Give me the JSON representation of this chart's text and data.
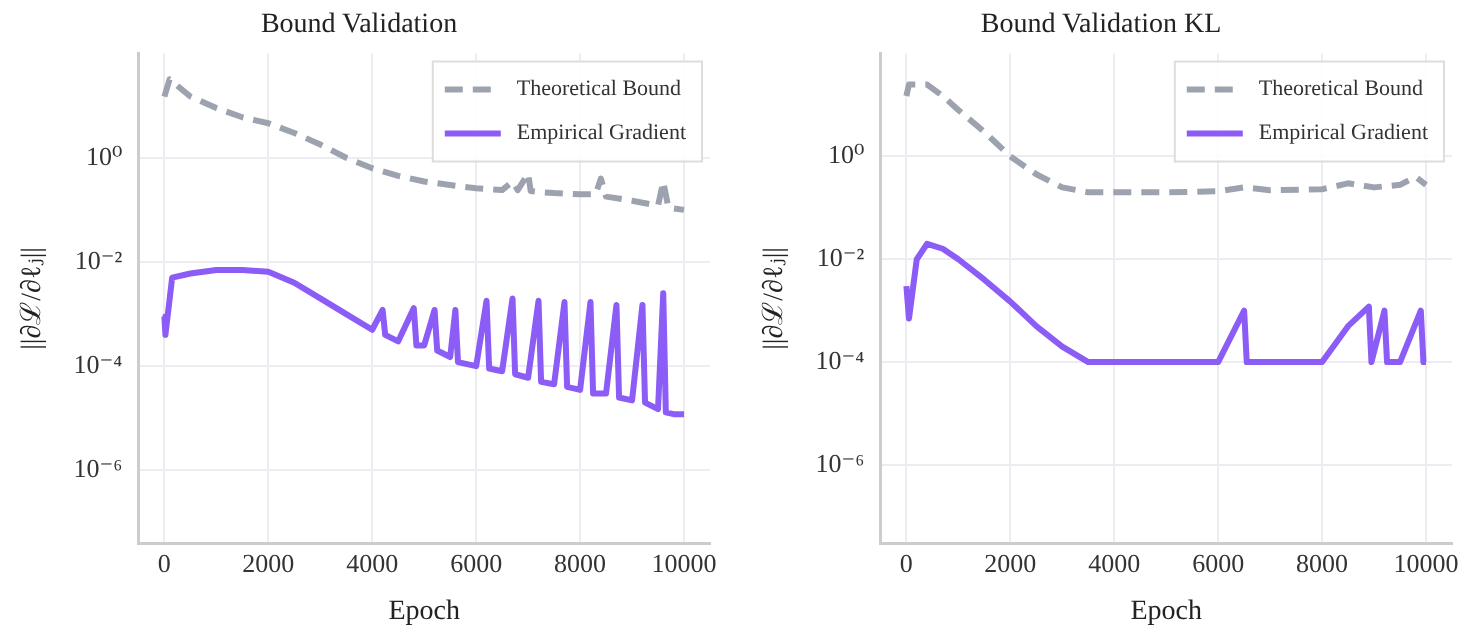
{
  "chart_data": [
    {
      "type": "line",
      "title": "Bound Validation",
      "xlabel": "Epoch",
      "ylabel": "||∂ℒ/∂ℓⱼ||",
      "log": "y",
      "grid": true,
      "legend": "top right",
      "xlim": [
        -500,
        10500
      ],
      "xticks": [
        0,
        2000,
        4000,
        6000,
        8000,
        10000
      ],
      "ylim": [
        4e-08,
        100
      ],
      "yticks": [
        {
          "value": 1e-06,
          "label": "10⁻⁶"
        },
        {
          "value": 0.0001,
          "label": "10⁻⁴"
        },
        {
          "value": 0.01,
          "label": "10⁻²"
        },
        {
          "value": 1,
          "label": "10⁰"
        }
      ],
      "series": [
        {
          "name": "Theoretical Bound",
          "color": "#9ca3af",
          "line_style": "dashed",
          "x": [
            0,
            100,
            500,
            1000,
            1500,
            2000,
            2500,
            3000,
            3500,
            4000,
            4500,
            5000,
            5500,
            6000,
            6500,
            6700,
            6800,
            7000,
            7050,
            7200,
            7500,
            8000,
            8300,
            8400,
            8500,
            9000,
            9500,
            9600,
            9700,
            10000
          ],
          "values": [
            15,
            32,
            15,
            9,
            6,
            4.6,
            3,
            1.8,
            1,
            0.63,
            0.45,
            0.35,
            0.3,
            0.26,
            0.24,
            0.35,
            0.24,
            0.5,
            0.23,
            0.22,
            0.21,
            0.2,
            0.2,
            0.4,
            0.18,
            0.15,
            0.12,
            0.35,
            0.11,
            0.1
          ]
        },
        {
          "name": "Empirical Gradient",
          "color": "#8b5cf6",
          "line_style": "solid",
          "x": [
            0,
            20,
            150,
            500,
            1000,
            1500,
            2000,
            2500,
            3000,
            3500,
            4000,
            4200,
            4250,
            4500,
            4800,
            4850,
            5000,
            5200,
            5250,
            5500,
            5600,
            5650,
            6000,
            6200,
            6250,
            6500,
            6700,
            6750,
            7000,
            7200,
            7250,
            7500,
            7700,
            7750,
            8000,
            8200,
            8250,
            8500,
            8700,
            8750,
            9000,
            9200,
            9250,
            9500,
            9600,
            9650,
            9800,
            10000
          ],
          "values": [
            0.0009,
            0.0004,
            0.005,
            0.006,
            0.007,
            0.007,
            0.0065,
            0.004,
            0.002,
            0.001,
            0.0005,
            0.0012,
            0.0004,
            0.0003,
            0.0013,
            0.00025,
            0.00025,
            0.0012,
            0.0002,
            0.00015,
            0.0012,
            0.00012,
            0.0001,
            0.0018,
            9e-05,
            8e-05,
            0.002,
            7e-05,
            6e-05,
            0.0018,
            5e-05,
            4.5e-05,
            0.0017,
            4e-05,
            3.5e-05,
            0.0017,
            3e-05,
            3e-05,
            0.0015,
            2.5e-05,
            2.2e-05,
            0.0015,
            2e-05,
            1.5e-05,
            0.0025,
            1.3e-05,
            1.2e-05,
            1.2e-05
          ]
        }
      ]
    },
    {
      "type": "line",
      "title": "Bound Validation KL",
      "xlabel": "Epoch",
      "ylabel": "||∂ℒ/∂ℓⱼ||",
      "log": "y",
      "grid": true,
      "legend": "top right",
      "xlim": [
        -500,
        10500
      ],
      "xticks": [
        0,
        2000,
        4000,
        6000,
        8000,
        10000
      ],
      "ylim": [
        3e-08,
        100
      ],
      "yticks": [
        {
          "value": 1e-06,
          "label": "10⁻⁶"
        },
        {
          "value": 0.0001,
          "label": "10⁻⁴"
        },
        {
          "value": 0.01,
          "label": "10⁻²"
        },
        {
          "value": 1,
          "label": "10⁰"
        }
      ],
      "series": [
        {
          "name": "Theoretical Bound",
          "color": "#9ca3af",
          "line_style": "dashed",
          "x": [
            0,
            50,
            400,
            700,
            1000,
            1500,
            2000,
            2500,
            3000,
            3500,
            4000,
            5000,
            6000,
            6500,
            7000,
            8000,
            8500,
            9000,
            9500,
            9800,
            10000
          ],
          "values": [
            15,
            25,
            25,
            15,
            8,
            3,
            1,
            0.45,
            0.25,
            0.2,
            0.2,
            0.2,
            0.21,
            0.25,
            0.22,
            0.23,
            0.3,
            0.25,
            0.28,
            0.4,
            0.28
          ]
        },
        {
          "name": "Empirical Gradient",
          "color": "#8b5cf6",
          "line_style": "solid",
          "x": [
            0,
            50,
            200,
            400,
            700,
            1000,
            1500,
            2000,
            2500,
            3000,
            3500,
            4000,
            5000,
            6000,
            6500,
            6550,
            7000,
            8000,
            8500,
            8900,
            8950,
            9200,
            9250,
            9500,
            9900,
            9950,
            10000
          ],
          "values": [
            0.003,
            0.0007,
            0.01,
            0.02,
            0.016,
            0.01,
            0.004,
            0.0015,
            0.0005,
            0.0002,
            0.0001,
            0.0001,
            0.0001,
            0.0001,
            0.001,
            0.0001,
            0.0001,
            0.0001,
            0.0005,
            0.0012,
            0.0001,
            0.001,
            0.0001,
            0.0001,
            0.001,
            0.0001,
            0.0001
          ]
        }
      ]
    }
  ]
}
